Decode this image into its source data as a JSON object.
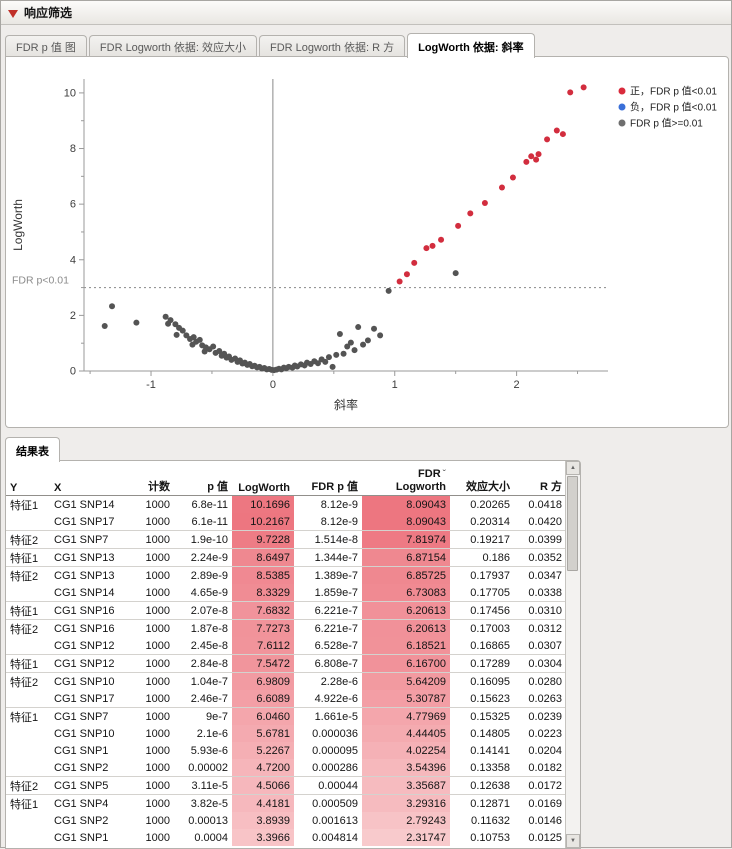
{
  "window": {
    "title": "响应筛选"
  },
  "plot_tabs": [
    {
      "label": "FDR p 值 图",
      "active": false
    },
    {
      "label": "FDR Logworth 依据: 效应大小",
      "active": false
    },
    {
      "label": "FDR Logworth 依据: R 方",
      "active": false
    },
    {
      "label": "LogWorth 依据: 斜率",
      "active": true
    }
  ],
  "chart_data": {
    "type": "scatter",
    "title": "",
    "xlabel": "斜率",
    "ylabel": "LogWorth",
    "xlim": [
      -1.55,
      2.75
    ],
    "ylim": [
      0,
      10.5
    ],
    "xticks": [
      -1,
      0,
      1,
      2
    ],
    "yticks": [
      0,
      2,
      4,
      6,
      8,
      10
    ],
    "zero_line_x": 0,
    "ref_line_y": 3,
    "ref_line_label": "FDR p<0.01",
    "legend_position": "top-right",
    "legend": [
      {
        "label": "正，FDR p 值<0.01",
        "color": "#d92b3c"
      },
      {
        "label": "负，FDR p 值<0.01",
        "color": "#3a6fd8"
      },
      {
        "label": "FDR p 值>=0.01",
        "color": "#6e6e6e"
      }
    ],
    "series": [
      {
        "name": "positive-significant",
        "color": "#d22d3e",
        "points": [
          [
            2.55,
            10.2
          ],
          [
            2.44,
            10.02
          ],
          [
            2.33,
            8.65
          ],
          [
            2.38,
            8.52
          ],
          [
            2.25,
            8.33
          ],
          [
            2.18,
            7.8
          ],
          [
            2.12,
            7.72
          ],
          [
            2.16,
            7.6
          ],
          [
            2.08,
            7.52
          ],
          [
            1.97,
            6.96
          ],
          [
            1.88,
            6.6
          ],
          [
            1.74,
            6.04
          ],
          [
            1.62,
            5.67
          ],
          [
            1.52,
            5.22
          ],
          [
            1.38,
            4.72
          ],
          [
            1.31,
            4.5
          ],
          [
            1.26,
            4.42
          ],
          [
            1.16,
            3.89
          ],
          [
            1.1,
            3.48
          ],
          [
            1.04,
            3.22
          ]
        ]
      },
      {
        "name": "negative-significant",
        "color": "#3a6fd8",
        "points": []
      },
      {
        "name": "not-significant",
        "color": "#545454",
        "points": [
          [
            -1.32,
            2.33
          ],
          [
            -1.38,
            1.62
          ],
          [
            -1.12,
            1.74
          ],
          [
            -0.88,
            1.95
          ],
          [
            -0.84,
            1.83
          ],
          [
            -0.86,
            1.7
          ],
          [
            -0.8,
            1.68
          ],
          [
            -0.77,
            1.55
          ],
          [
            -0.74,
            1.45
          ],
          [
            -0.79,
            1.3
          ],
          [
            -0.71,
            1.28
          ],
          [
            -0.68,
            1.15
          ],
          [
            -0.65,
            1.22
          ],
          [
            -0.63,
            1.05
          ],
          [
            -0.6,
            1.12
          ],
          [
            -0.66,
            0.95
          ],
          [
            -0.58,
            0.92
          ],
          [
            -0.55,
            0.85
          ],
          [
            -0.52,
            0.78
          ],
          [
            -0.56,
            0.7
          ],
          [
            -0.49,
            0.88
          ],
          [
            -0.47,
            0.65
          ],
          [
            -0.44,
            0.72
          ],
          [
            -0.42,
            0.55
          ],
          [
            -0.4,
            0.62
          ],
          [
            -0.38,
            0.48
          ],
          [
            -0.36,
            0.52
          ],
          [
            -0.34,
            0.4
          ],
          [
            -0.31,
            0.45
          ],
          [
            -0.29,
            0.33
          ],
          [
            -0.27,
            0.38
          ],
          [
            -0.25,
            0.27
          ],
          [
            -0.23,
            0.3
          ],
          [
            -0.21,
            0.22
          ],
          [
            -0.19,
            0.25
          ],
          [
            -0.17,
            0.17
          ],
          [
            -0.15,
            0.19
          ],
          [
            -0.13,
            0.13
          ],
          [
            -0.11,
            0.15
          ],
          [
            -0.09,
            0.09
          ],
          [
            -0.07,
            0.11
          ],
          [
            -0.05,
            0.06
          ],
          [
            -0.03,
            0.07
          ],
          [
            -0.01,
            0.04
          ],
          [
            0.01,
            0.03
          ],
          [
            0.03,
            0.05
          ],
          [
            0.05,
            0.08
          ],
          [
            0.07,
            0.06
          ],
          [
            0.09,
            0.12
          ],
          [
            0.11,
            0.1
          ],
          [
            0.13,
            0.15
          ],
          [
            0.16,
            0.12
          ],
          [
            0.18,
            0.2
          ],
          [
            0.2,
            0.16
          ],
          [
            0.23,
            0.24
          ],
          [
            0.26,
            0.2
          ],
          [
            0.28,
            0.3
          ],
          [
            0.31,
            0.25
          ],
          [
            0.34,
            0.35
          ],
          [
            0.37,
            0.28
          ],
          [
            0.4,
            0.42
          ],
          [
            0.43,
            0.33
          ],
          [
            0.46,
            0.5
          ],
          [
            0.49,
            0.15
          ],
          [
            0.52,
            0.58
          ],
          [
            0.55,
            1.33
          ],
          [
            0.58,
            0.62
          ],
          [
            0.61,
            0.88
          ],
          [
            0.64,
            1.02
          ],
          [
            0.67,
            0.75
          ],
          [
            0.7,
            1.58
          ],
          [
            0.74,
            0.95
          ],
          [
            0.78,
            1.1
          ],
          [
            0.83,
            1.52
          ],
          [
            0.88,
            1.28
          ],
          [
            0.95,
            2.88
          ],
          [
            1.5,
            3.52
          ]
        ]
      }
    ]
  },
  "results": {
    "tab_label": "结果表",
    "sort_caret": "ˇ",
    "columns": {
      "y": "Y",
      "x": "X",
      "count": "计数",
      "p": "p 值",
      "logworth": "LogWorth",
      "fdr_p": "FDR p 值",
      "fdr_line1": "FDR",
      "fdr_line2": "Logworth",
      "effect": "效应大小",
      "rsq": "R 方"
    },
    "heat": {
      "low": "#fdebeb",
      "high": "#ed7680",
      "logworth_max": 10.22,
      "fdr_logworth_max": 8.1
    },
    "rows": [
      {
        "y": "特征1",
        "x": "CG1 SNP14",
        "count": "1000",
        "p": "6.8e-11",
        "logworth": "10.1696",
        "fdr_p": "8.12e-9",
        "fdr_logworth": "8.09043",
        "effect": "0.20265",
        "rsq": "0.0418"
      },
      {
        "y": "",
        "x": "CG1 SNP17",
        "count": "1000",
        "p": "6.1e-11",
        "logworth": "10.2167",
        "fdr_p": "8.12e-9",
        "fdr_logworth": "8.09043",
        "effect": "0.20314",
        "rsq": "0.0420"
      },
      {
        "y": "特征2",
        "x": "CG1 SNP7",
        "count": "1000",
        "p": "1.9e-10",
        "logworth": "9.7228",
        "fdr_p": "1.514e-8",
        "fdr_logworth": "7.81974",
        "effect": "0.19217",
        "rsq": "0.0399"
      },
      {
        "y": "特征1",
        "x": "CG1 SNP13",
        "count": "1000",
        "p": "2.24e-9",
        "logworth": "8.6497",
        "fdr_p": "1.344e-7",
        "fdr_logworth": "6.87154",
        "effect": "0.186",
        "rsq": "0.0352"
      },
      {
        "y": "特征2",
        "x": "CG1 SNP13",
        "count": "1000",
        "p": "2.89e-9",
        "logworth": "8.5385",
        "fdr_p": "1.389e-7",
        "fdr_logworth": "6.85725",
        "effect": "0.17937",
        "rsq": "0.0347"
      },
      {
        "y": "",
        "x": "CG1 SNP14",
        "count": "1000",
        "p": "4.65e-9",
        "logworth": "8.3329",
        "fdr_p": "1.859e-7",
        "fdr_logworth": "6.73083",
        "effect": "0.17705",
        "rsq": "0.0338"
      },
      {
        "y": "特征1",
        "x": "CG1 SNP16",
        "count": "1000",
        "p": "2.07e-8",
        "logworth": "7.6832",
        "fdr_p": "6.221e-7",
        "fdr_logworth": "6.20613",
        "effect": "0.17456",
        "rsq": "0.0310"
      },
      {
        "y": "特征2",
        "x": "CG1 SNP16",
        "count": "1000",
        "p": "1.87e-8",
        "logworth": "7.7273",
        "fdr_p": "6.221e-7",
        "fdr_logworth": "6.20613",
        "effect": "0.17003",
        "rsq": "0.0312"
      },
      {
        "y": "",
        "x": "CG1 SNP12",
        "count": "1000",
        "p": "2.45e-8",
        "logworth": "7.6112",
        "fdr_p": "6.528e-7",
        "fdr_logworth": "6.18521",
        "effect": "0.16865",
        "rsq": "0.0307"
      },
      {
        "y": "特征1",
        "x": "CG1 SNP12",
        "count": "1000",
        "p": "2.84e-8",
        "logworth": "7.5472",
        "fdr_p": "6.808e-7",
        "fdr_logworth": "6.16700",
        "effect": "0.17289",
        "rsq": "0.0304"
      },
      {
        "y": "特征2",
        "x": "CG1 SNP10",
        "count": "1000",
        "p": "1.04e-7",
        "logworth": "6.9809",
        "fdr_p": "2.28e-6",
        "fdr_logworth": "5.64209",
        "effect": "0.16095",
        "rsq": "0.0280"
      },
      {
        "y": "",
        "x": "CG1 SNP17",
        "count": "1000",
        "p": "2.46e-7",
        "logworth": "6.6089",
        "fdr_p": "4.922e-6",
        "fdr_logworth": "5.30787",
        "effect": "0.15623",
        "rsq": "0.0263"
      },
      {
        "y": "特征1",
        "x": "CG1 SNP7",
        "count": "1000",
        "p": "9e-7",
        "logworth": "6.0460",
        "fdr_p": "1.661e-5",
        "fdr_logworth": "4.77969",
        "effect": "0.15325",
        "rsq": "0.0239"
      },
      {
        "y": "",
        "x": "CG1 SNP10",
        "count": "1000",
        "p": "2.1e-6",
        "logworth": "5.6781",
        "fdr_p": "0.000036",
        "fdr_logworth": "4.44405",
        "effect": "0.14805",
        "rsq": "0.0223"
      },
      {
        "y": "",
        "x": "CG1 SNP1",
        "count": "1000",
        "p": "5.93e-6",
        "logworth": "5.2267",
        "fdr_p": "0.000095",
        "fdr_logworth": "4.02254",
        "effect": "0.14141",
        "rsq": "0.0204"
      },
      {
        "y": "",
        "x": "CG1 SNP2",
        "count": "1000",
        "p": "0.00002",
        "logworth": "4.7200",
        "fdr_p": "0.000286",
        "fdr_logworth": "3.54396",
        "effect": "0.13358",
        "rsq": "0.0182"
      },
      {
        "y": "特征2",
        "x": "CG1 SNP5",
        "count": "1000",
        "p": "3.11e-5",
        "logworth": "4.5066",
        "fdr_p": "0.00044",
        "fdr_logworth": "3.35687",
        "effect": "0.12638",
        "rsq": "0.0172"
      },
      {
        "y": "特征1",
        "x": "CG1 SNP4",
        "count": "1000",
        "p": "3.82e-5",
        "logworth": "4.4181",
        "fdr_p": "0.000509",
        "fdr_logworth": "3.29316",
        "effect": "0.12871",
        "rsq": "0.0169"
      },
      {
        "y": "",
        "x": "CG1 SNP2",
        "count": "1000",
        "p": "0.00013",
        "logworth": "3.8939",
        "fdr_p": "0.001613",
        "fdr_logworth": "2.79243",
        "effect": "0.11632",
        "rsq": "0.0146"
      },
      {
        "y": "",
        "x": "CG1 SNP1",
        "count": "1000",
        "p": "0.0004",
        "logworth": "3.3966",
        "fdr_p": "0.004814",
        "fdr_logworth": "2.31747",
        "effect": "0.10753",
        "rsq": "0.0125"
      }
    ]
  }
}
